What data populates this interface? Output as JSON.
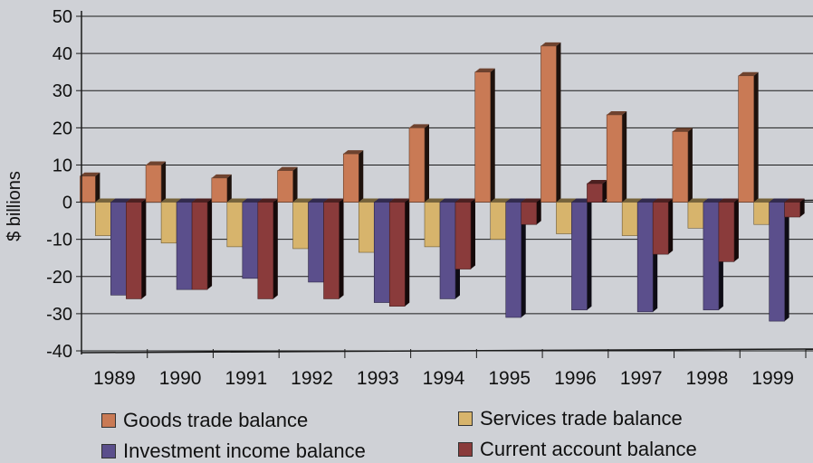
{
  "chart_data": {
    "type": "bar",
    "title": "",
    "xlabel": "",
    "ylabel": "$ billions",
    "ylim": [
      -40,
      50
    ],
    "yticks": [
      "50",
      "40",
      "30",
      "20",
      "10",
      "0",
      "-10",
      "-20",
      "-30",
      "-40"
    ],
    "grid": true,
    "legend_position": "bottom",
    "categories": [
      "1989",
      "1990",
      "1991",
      "1992",
      "1993",
      "1994",
      "1995",
      "1996",
      "1997",
      "1998",
      "1999"
    ],
    "series": [
      {
        "name": "Goods trade balance",
        "color": "#c97a55",
        "values": [
          7,
          10,
          6.5,
          8.5,
          13,
          20,
          35,
          42,
          23.5,
          19,
          34
        ]
      },
      {
        "name": "Services trade balance",
        "color": "#d7b46c",
        "values": [
          -9,
          -11,
          -12,
          -12.5,
          -13.5,
          -12,
          -10,
          -8.5,
          -9,
          -7,
          -6
        ]
      },
      {
        "name": "Investment income balance",
        "color": "#5b4f8c",
        "values": [
          -25,
          -23.5,
          -20.5,
          -21.5,
          -27,
          -26,
          -31,
          -29,
          -29.5,
          -29,
          -32
        ]
      },
      {
        "name": "Current account balance",
        "color": "#8a3b3b",
        "values": [
          -26,
          -23.5,
          -26,
          -26,
          -28,
          -18,
          -6,
          5,
          -14,
          -16,
          -4
        ]
      }
    ]
  }
}
